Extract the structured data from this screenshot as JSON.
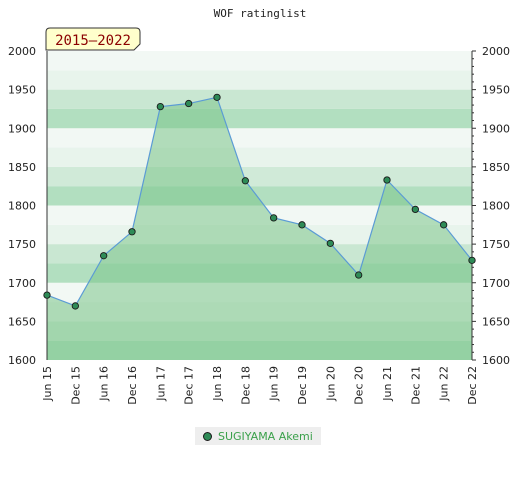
{
  "chart_data": {
    "type": "area",
    "title": "WOF ratinglist",
    "badge": "2015–2022",
    "categories": [
      "Jun 15",
      "Dec 15",
      "Jun 16",
      "Dec 16",
      "Jun 17",
      "Dec 17",
      "Jun 18",
      "Dec 18",
      "Jun 19",
      "Dec 19",
      "Jun 20",
      "Dec 20",
      "Jun 21",
      "Dec 21",
      "Jun 22",
      "Dec 22"
    ],
    "series": [
      {
        "name": "SUGIYAMA Akemi",
        "values": [
          1684,
          1670,
          1735,
          1766,
          1928,
          1932,
          1940,
          1832,
          1784,
          1775,
          1751,
          1710,
          1833,
          1795,
          1775,
          1729
        ]
      }
    ],
    "ylim": [
      1600,
      2000
    ],
    "yticks": [
      1600,
      1650,
      1700,
      1750,
      1800,
      1850,
      1900,
      1950,
      2000
    ],
    "legend_position": "bottom",
    "colors": {
      "line": "#5b9bd5",
      "fill": "#7cc48a",
      "marker": "#2e8b57",
      "band_dark": "#b2dfc0",
      "band_light": "#e8f4ec"
    }
  }
}
